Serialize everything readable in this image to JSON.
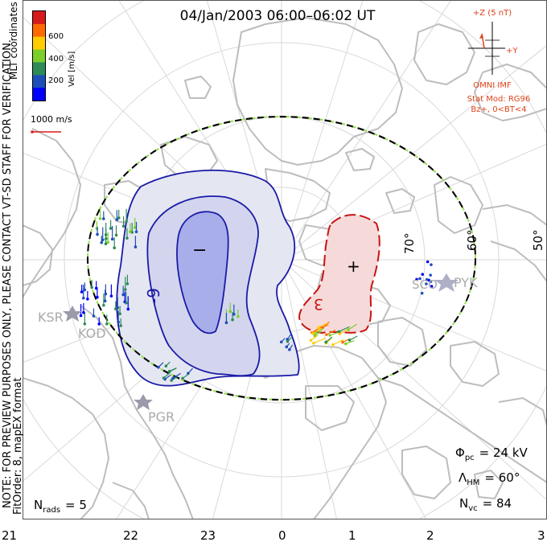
{
  "title": "04/Jan/2003 06:00–06:02 UT",
  "legend": {
    "heading": "Vel [m/s]",
    "ticks": [
      "600",
      "400",
      "200"
    ],
    "colors": [
      "#d7191c",
      "#ff6a00",
      "#ffcc00",
      "#7ccf2a",
      "#2e8b57",
      "#1e4fb8",
      "#0000ff"
    ],
    "coord_label": "MLT coordinates",
    "scale_label": "1000 m/s"
  },
  "imf": {
    "z_label": "+Z (5 nT)",
    "y_label": "+Y",
    "source": "OMNI IMF",
    "model": "Stat Mod: RG96",
    "condition": "Bz+, 0<BT<4"
  },
  "latitude_labels": [
    "70°",
    "60°",
    "50°"
  ],
  "stations": [
    "SCO",
    "PYK",
    "KSR",
    "KOD",
    "PGR"
  ],
  "contour_labels": {
    "negative": "-9",
    "positive": "3"
  },
  "potential_signs": {
    "min": "−",
    "max": "+"
  },
  "stats": {
    "phi_symbol": "Φ",
    "phi_sub": "pc",
    "phi_value": "= 24 kV",
    "lambda_symbol": "Λ",
    "lambda_sub": "HM",
    "lambda_value": "= 60°",
    "nvc_symbol": "N",
    "nvc_sub": "vc",
    "nvc_value": "= 84",
    "nrads_symbol": "N",
    "nrads_sub": "rads",
    "nrads_value": "= 5"
  },
  "notes": {
    "preview": "NOTE: FOR PREVIEW PURPOSES ONLY, PLEASE CONTACT VT-SD STAFF FOR VERIFICATION.",
    "fit": "FitOrder: 8, mapEX format"
  },
  "mlt_axis": [
    "21",
    "22",
    "23",
    "0",
    "1",
    "2",
    "3"
  ],
  "colors": {
    "negative_fill": "#e4e6f2",
    "negative_core": "#a8aeea",
    "negative_line": "#1a1aa6",
    "positive_fill": "#f6dada",
    "positive_line": "#c81414",
    "coast": "#bdbdbd",
    "grid": "#d7d7d7",
    "boundary_green": "#9ee05a",
    "imf_red": "#e0401a"
  }
}
